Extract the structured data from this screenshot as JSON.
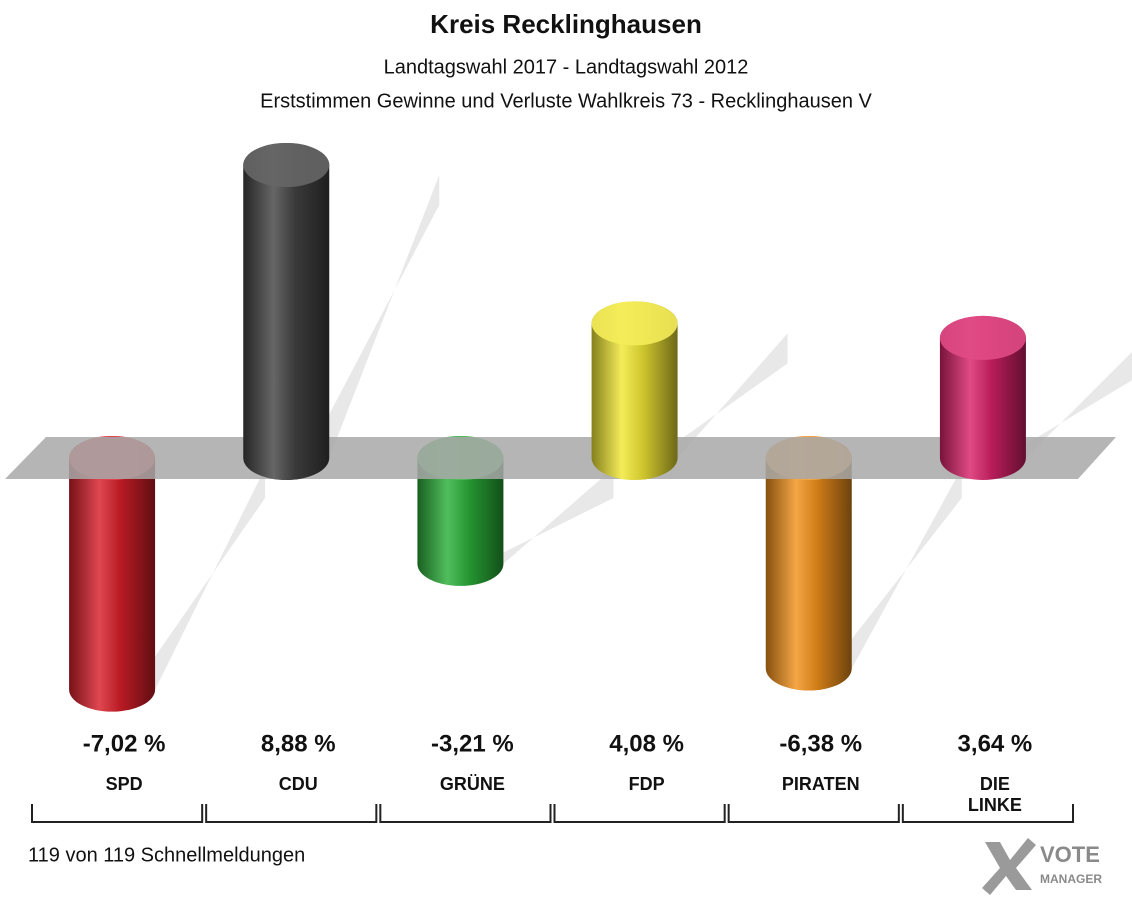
{
  "chart_data": {
    "type": "bar",
    "title": "Kreis Recklinghausen",
    "subtitle": "Landtagswahl 2017 - Landtagswahl 2012",
    "subtitle2": "Erststimmen Gewinne und Verluste Wahlkreis 73 - Recklinghausen V",
    "categories": [
      "SPD",
      "CDU",
      "GRÜNE",
      "FDP",
      "PIRATEN",
      "DIE LINKE"
    ],
    "values": [
      -7.02,
      8.88,
      -3.21,
      4.08,
      -6.38,
      3.64
    ],
    "value_labels": [
      "-7,02 %",
      "8,88 %",
      "-3,21 %",
      "4,08 %",
      "-6,38 %",
      "3,64 %"
    ],
    "colors": [
      "#d81f2a",
      "#444444",
      "#2bb03a",
      "#f2e835",
      "#f3921c",
      "#d9226a"
    ],
    "footer": "119 von 119 Schnellmeldungen",
    "logo": {
      "line1": "VOTE",
      "line2": "MANAGER"
    }
  }
}
